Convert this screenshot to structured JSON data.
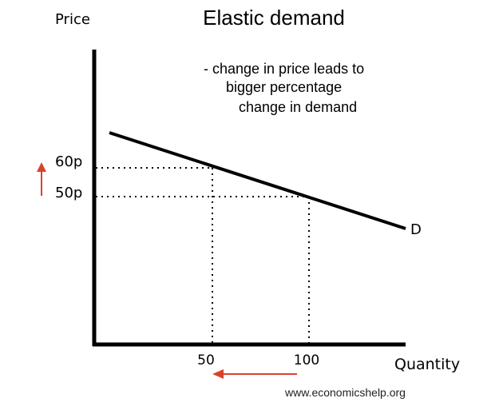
{
  "diagram": {
    "title": "Elastic demand",
    "y_axis_label": "Price",
    "x_axis_label": "Quantity",
    "note_lines": [
      "- change in price leads to",
      "bigger percentage",
      "change in demand"
    ],
    "curve_label": "D",
    "price_ticks": [
      "60p",
      "50p"
    ],
    "quantity_ticks": [
      "50",
      "100"
    ],
    "source": "www.economicshelp.org",
    "colors": {
      "curve": "#000000",
      "axes": "#000000",
      "arrow": "#d9432c",
      "dotted": "#000000"
    },
    "price_change_arrow": "up-arrow-icon",
    "quantity_change_arrow": "left-arrow-icon"
  },
  "chart_data": {
    "type": "line",
    "title": "Elastic demand",
    "xlabel": "Quantity",
    "ylabel": "Price",
    "series": [
      {
        "name": "D",
        "points": [
          {
            "x": 50,
            "y": 60
          },
          {
            "x": 100,
            "y": 50
          }
        ]
      }
    ],
    "reference_lines": [
      {
        "price": 60,
        "quantity": 50
      },
      {
        "price": 50,
        "quantity": 100
      }
    ],
    "grid": false
  }
}
